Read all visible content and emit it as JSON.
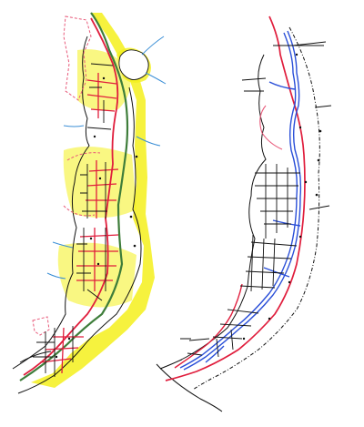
{
  "panels": [
    {
      "id": "left",
      "kind": "land-use-road-network-plan"
    },
    {
      "id": "right",
      "kind": "road-network-plan"
    }
  ],
  "colors": {
    "highlight": "#f4f01c",
    "blue_route": "#2a4fd8",
    "red_route": "#e01d3c",
    "pink_dashed": "#e85a7a",
    "black_road": "#111111",
    "river": "#3b8fd6",
    "greenbelt": "#3e7d3a"
  },
  "icons": {
    "north_arrow": "none",
    "legend": "none"
  }
}
